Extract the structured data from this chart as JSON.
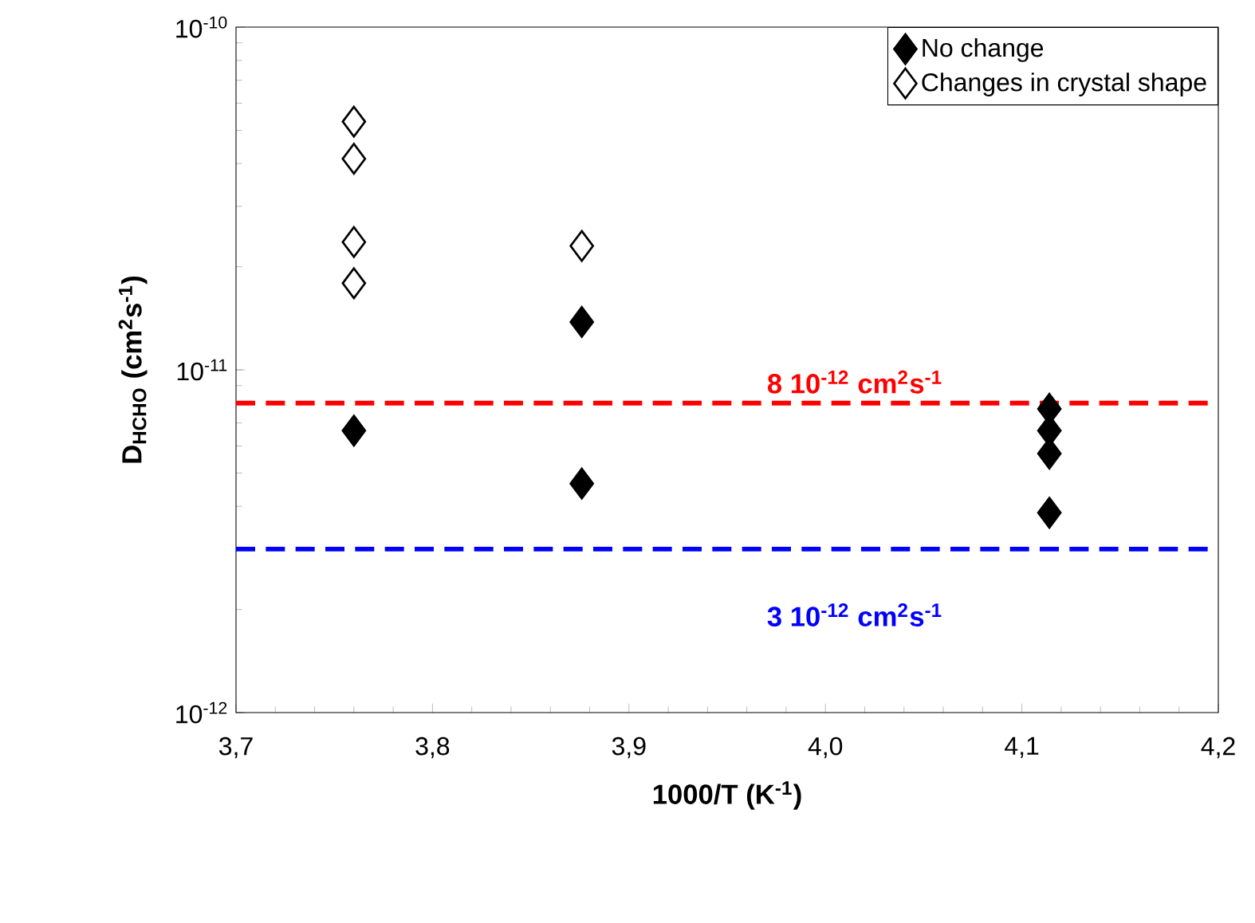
{
  "chart_data": {
    "type": "scatter",
    "xlabel": "1000/T (K$^{-1}$)",
    "ylabel": "D$_{HCHO}$ (cm$^{2}$s$^{-1}$)",
    "series": [
      {
        "name": "No change",
        "color": "#000000",
        "x": [
          3.76,
          3.876,
          3.876,
          4.114,
          4.114,
          4.114,
          4.114
        ],
        "values": [
          6.65e-12,
          1.38e-11,
          4.66e-12,
          7.7e-12,
          6.65e-12,
          5.7e-12,
          3.83e-12
        ]
      },
      {
        "name": "Changes in crystal shape",
        "color": "#ffffff",
        "x": [
          3.76,
          3.76,
          3.76,
          3.76,
          3.876
        ],
        "values": [
          5.3e-11,
          4.13e-11,
          2.36e-11,
          1.79e-11,
          2.3e-11
        ]
      }
    ],
    "xlim": [
      3.7,
      4.2
    ],
    "xticks": [
      {
        "value": 3.7,
        "label": "3,7"
      },
      {
        "value": 3.8,
        "label": "3,8"
      },
      {
        "value": 3.9,
        "label": "3,9"
      },
      {
        "value": 4.0,
        "label": "4,0"
      },
      {
        "value": 4.1,
        "label": "4,1"
      },
      {
        "value": 4.2,
        "label": "4,2"
      }
    ],
    "ylim": [
      1e-12,
      1e-10
    ],
    "yticks": [
      {
        "value": 1e-12,
        "label": "10$^{-12}$"
      },
      {
        "value": 1e-11,
        "label": "10$^{-11}$"
      },
      {
        "value": 1e-10,
        "label": "10$^{-10}$"
      }
    ],
    "log": "y",
    "grid": false,
    "legend": "top right",
    "marker": "diamond",
    "ref_lines": [
      {
        "axis": "y",
        "value": 8e-12,
        "label": "8 10$^{-12}$ cm$^{2}$s$^{-1}$",
        "color": "#ff0000",
        "line_style": "dashed"
      },
      {
        "axis": "y",
        "value": 3e-12,
        "label": "3 10$^{-12}$ cm$^{2}$s$^{-1}$",
        "color": "#0000ff",
        "line_style": "dashed"
      }
    ]
  }
}
